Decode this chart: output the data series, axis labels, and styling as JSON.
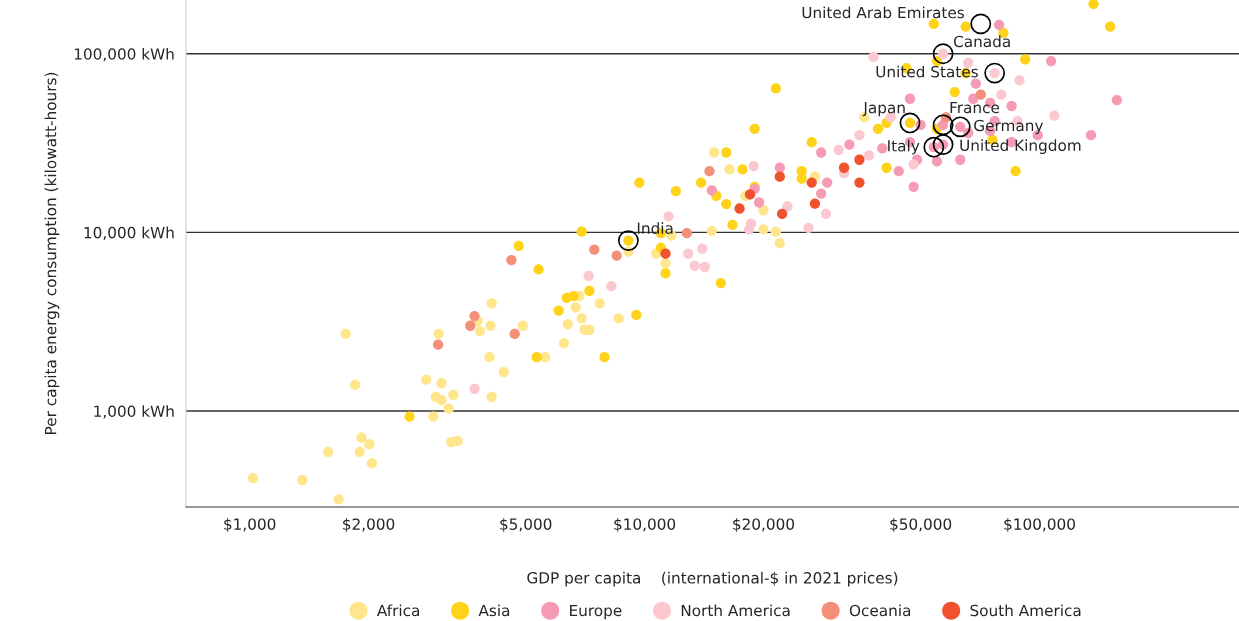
{
  "chart_data": {
    "type": "scatter",
    "xlabel": "GDP per capita    (international-$ in 2021 prices)",
    "ylabel": "Per capita energy consumption (kilowatt-hours)",
    "log": "xy",
    "grid": "y",
    "legend": "bottom",
    "marker": "circle",
    "xlim": [
      690,
      320000
    ],
    "ylim": [
      290,
      200000
    ],
    "xticks": [
      {
        "value": 1000,
        "label": "$1,000"
      },
      {
        "value": 2000,
        "label": "$2,000"
      },
      {
        "value": 5000,
        "label": "$5,000"
      },
      {
        "value": 10000,
        "label": "$10,000"
      },
      {
        "value": 20000,
        "label": "$20,000"
      },
      {
        "value": 50000,
        "label": "$50,000"
      },
      {
        "value": 100000,
        "label": "$100,000"
      }
    ],
    "yticks": [
      {
        "value": 1000,
        "label": "1,000 kWh"
      },
      {
        "value": 10000,
        "label": "10,000 kWh"
      },
      {
        "value": 100000,
        "label": "100,000 kWh"
      }
    ],
    "series": [
      {
        "name": "Africa",
        "color": "#ffe58c",
        "x": [
          1020,
          1360,
          1680,
          1750,
          1850,
          1580,
          1920,
          2010,
          1900,
          2040,
          2800,
          3060,
          2960,
          3060,
          3280,
          3190,
          2920,
          3240,
          3360,
          4100,
          4400,
          4050,
          3780,
          3830,
          4070,
          4100,
          3010,
          4920,
          5600,
          6250,
          6390,
          6690,
          6840,
          6930,
          7050,
          7250,
          7700,
          8600,
          11300,
          10700,
          11700,
          9100,
          36000,
          15000,
          27000,
          20000,
          18000,
          16400,
          14800,
          20000,
          21500,
          22000
        ],
        "values": [
          420,
          410,
          320,
          2700,
          1400,
          590,
          710,
          650,
          590,
          510,
          1500,
          1430,
          1200,
          1150,
          1230,
          1030,
          930,
          670,
          680,
          1200,
          1650,
          2000,
          3200,
          2800,
          3000,
          4000,
          2700,
          3000,
          2000,
          2400,
          3050,
          3800,
          4400,
          3300,
          2850,
          2850,
          4000,
          3300,
          6700,
          7600,
          9600,
          7800,
          44000,
          28000,
          20500,
          13300,
          16000,
          22500,
          10200,
          10400,
          10100,
          8700
        ]
      },
      {
        "name": "Asia",
        "color": "#ffd31a",
        "x": [
          2540,
          5390,
          5330,
          6060,
          6350,
          6610,
          7250,
          9530,
          7920,
          11300,
          15600,
          9700,
          12000,
          13900,
          6930,
          4800,
          9100,
          11000,
          11000,
          54000,
          65000,
          81000,
          137000,
          151000,
          55000,
          46000,
          65000,
          92000,
          61000,
          21500,
          41000,
          39000,
          47000,
          55000,
          76000,
          26500,
          19000,
          16100,
          41000,
          87000,
          25000,
          25000,
          22800,
          19000,
          16100,
          15200,
          17700,
          16700
        ],
        "values": [
          930,
          6200,
          2000,
          3650,
          4300,
          4400,
          4700,
          3450,
          2000,
          5900,
          5200,
          19000,
          17000,
          19000,
          10100,
          8400,
          9000,
          9900,
          8200,
          147000,
          142000,
          131000,
          190000,
          142000,
          91000,
          83000,
          78000,
          93000,
          61000,
          64000,
          41000,
          38000,
          41000,
          38000,
          33000,
          32000,
          38000,
          28000,
          23000,
          22000,
          20000,
          22000,
          null,
          18000,
          14400,
          16000,
          22500,
          11000
        ]
      },
      {
        "name": "Europe",
        "color": "#f59bb3",
        "x": [
          79000,
          107000,
          69000,
          68000,
          47000,
          75000,
          85000,
          157000,
          50000,
          57000,
          63000,
          66000,
          77000,
          75000,
          99000,
          135000,
          85000,
          54000,
          57000,
          47000,
          40000,
          33000,
          28000,
          49000,
          55000,
          63000,
          44000,
          48000,
          29000,
          28000,
          22000,
          19500,
          19000,
          14800
        ],
        "values": [
          145000,
          91000,
          68000,
          56000,
          56000,
          53000,
          51000,
          55000,
          40000,
          40000,
          39000,
          36000,
          42000,
          37000,
          35000,
          35000,
          32000,
          30000,
          31000,
          32000,
          29500,
          31000,
          28000,
          25500,
          25000,
          25500,
          22000,
          18000,
          19000,
          16500,
          23000,
          14700,
          17500,
          17200
        ]
      },
      {
        "name": "North America",
        "color": "#fbc8d0",
        "x": [
          3710,
          7220,
          8240,
          13400,
          14200,
          11500,
          14000,
          12900,
          57000,
          38000,
          66000,
          77000,
          89000,
          80000,
          109000,
          42000,
          88000,
          35000,
          31000,
          37000,
          32000,
          48000,
          28800,
          23000,
          18900,
          18600,
          18400,
          26000
        ],
        "values": [
          1330,
          5700,
          5000,
          6500,
          6400,
          12300,
          8100,
          7600,
          100000,
          96000,
          89000,
          78000,
          71000,
          59000,
          45000,
          44000,
          42000,
          35000,
          29000,
          27000,
          21500,
          24000,
          12700,
          14000,
          23500,
          11200,
          10400,
          10600
        ]
      },
      {
        "name": "Oceania",
        "color": "#f4907a",
        "x": [
          3710,
          3620,
          3000,
          4690,
          4600,
          7460,
          8500,
          12800,
          71000,
          58000,
          14600
        ],
        "values": [
          3400,
          3000,
          2350,
          2700,
          7000,
          8000,
          7400,
          9900,
          59000,
          44000,
          22000
        ]
      },
      {
        "name": "South America",
        "color": "#f0522e",
        "x": [
          11300,
          35000,
          32000,
          35000,
          27000,
          26500,
          22000,
          22300,
          18500,
          17400
        ],
        "values": [
          7600,
          25500,
          23000,
          19000,
          14500,
          19000,
          20500,
          12700,
          16300,
          13600
        ]
      }
    ],
    "annotations": [
      {
        "text": "United Arab Emirates",
        "x": 71000,
        "y": 147000
      },
      {
        "text": "Canada",
        "x": 57000,
        "y": 100000
      },
      {
        "text": "United States",
        "x": 77000,
        "y": 78000
      },
      {
        "text": "Japan",
        "x": 47000,
        "y": 41000
      },
      {
        "text": "France",
        "x": 57000,
        "y": 40000
      },
      {
        "text": "Germany",
        "x": 63000,
        "y": 39000
      },
      {
        "text": "Italy",
        "x": 54000,
        "y": 30000
      },
      {
        "text": "United Kingdom",
        "x": 57000,
        "y": 31000
      },
      {
        "text": "India",
        "x": 9100,
        "y": 9000
      }
    ]
  }
}
